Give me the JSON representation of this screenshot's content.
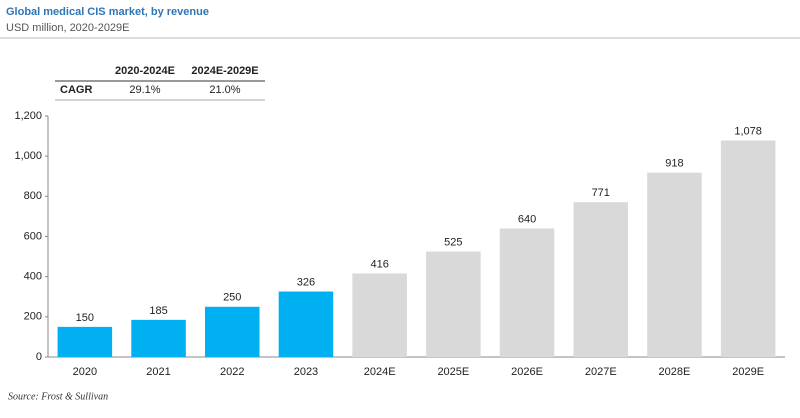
{
  "chart_data": {
    "type": "bar",
    "title": "Global medical CIS market, by revenue",
    "subtitle": "USD million, 2020-2029E",
    "categories": [
      "2020",
      "2021",
      "2022",
      "2023",
      "2024E",
      "2025E",
      "2026E",
      "2027E",
      "2028E",
      "2029E"
    ],
    "values": [
      150,
      185,
      250,
      326,
      416,
      525,
      640,
      771,
      918,
      1078
    ],
    "value_labels": [
      "150",
      "185",
      "250",
      "326",
      "416",
      "525",
      "640",
      "771",
      "918",
      "1,078"
    ],
    "colors": [
      "#00b0f0",
      "#00b0f0",
      "#00b0f0",
      "#00b0f0",
      "#d9d9d9",
      "#d9d9d9",
      "#d9d9d9",
      "#d9d9d9",
      "#d9d9d9",
      "#d9d9d9"
    ],
    "ylim": [
      0,
      1200
    ],
    "yticks": [
      0,
      200,
      400,
      600,
      800,
      {
        "value": 1000,
        "label": "1,000"
      },
      {
        "value": 1200,
        "label": "1,200"
      }
    ],
    "grid": false,
    "table": {
      "columns": [
        "2020-2024E",
        "2024E-2029E"
      ],
      "rows": [
        [
          "CAGR",
          "29.1%",
          "21.0%"
        ]
      ]
    },
    "source": "Source: Frost & Sullivan"
  }
}
